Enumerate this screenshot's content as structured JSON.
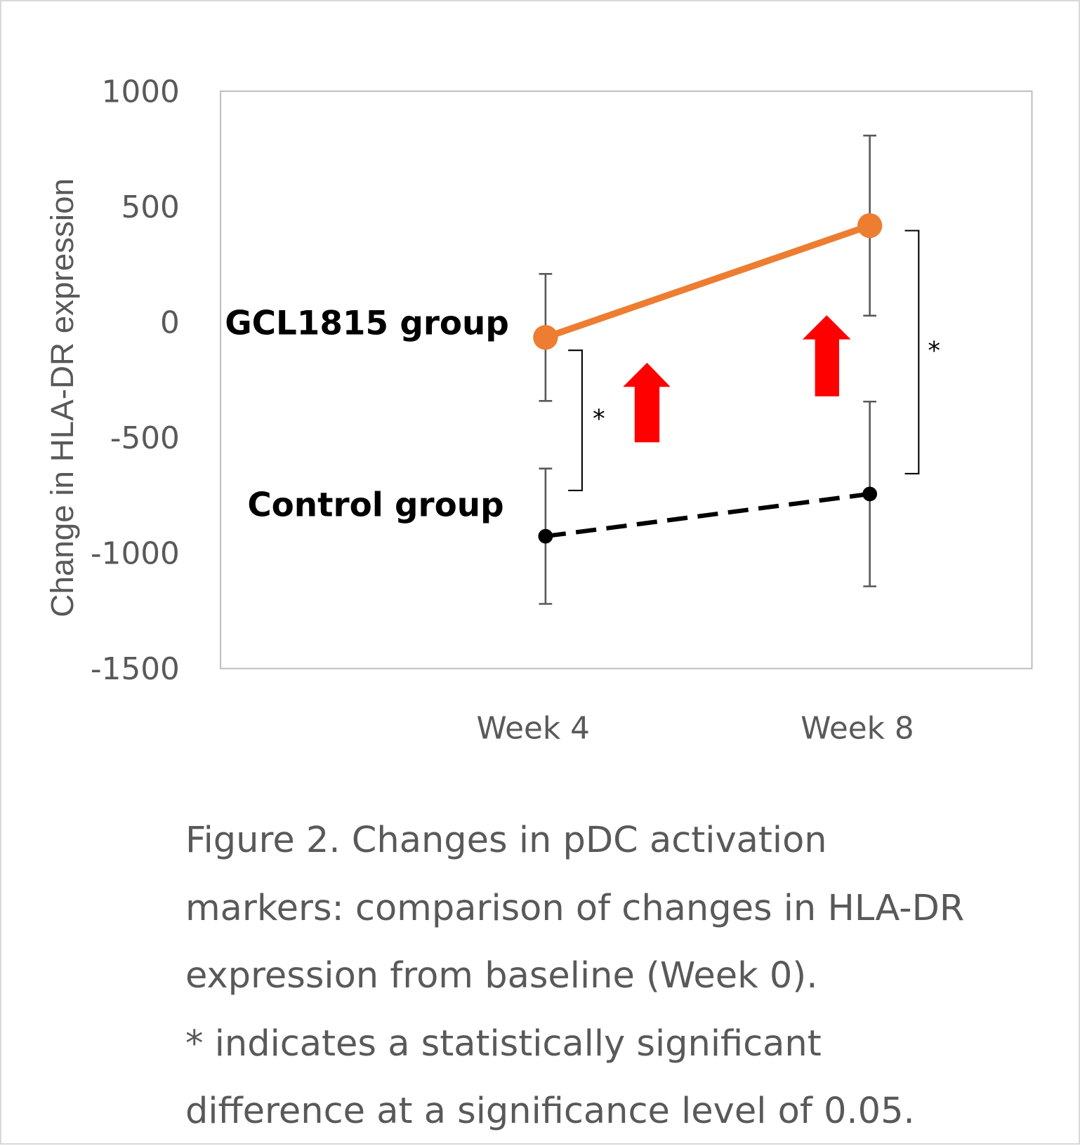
{
  "chart_data": {
    "type": "line",
    "ylabel": "Change in HLA-DR expression",
    "xlabel": "",
    "categories": [
      "Week 4",
      "Week 8"
    ],
    "ylim": [
      -1500,
      1000
    ],
    "yticks": [
      "1000",
      "500",
      "0",
      "-500",
      "-1000",
      "-1500"
    ],
    "ytick_values": [
      1000,
      500,
      0,
      -500,
      -1000,
      -1500
    ],
    "grid": false,
    "series": [
      {
        "name": "GCL1815 group",
        "color": "#ED7D31",
        "style": "solid",
        "values": [
          -66,
          418
        ],
        "errors": [
          275,
          390
        ]
      },
      {
        "name": "Control group",
        "color": "#000000",
        "style": "dashed",
        "values": [
          -927,
          -744
        ],
        "errors": [
          293,
          400
        ]
      }
    ],
    "annotations": {
      "significance_marker": "*",
      "arrow_color": "#FF0000"
    }
  },
  "caption": {
    "lines": [
      "Figure 2. Changes in pDC activation",
      "markers: comparison of changes in HLA-DR",
      "expression from baseline (Week 0).",
      "* indicates a statistically significant",
      "difference at a significance level of 0.05."
    ]
  }
}
